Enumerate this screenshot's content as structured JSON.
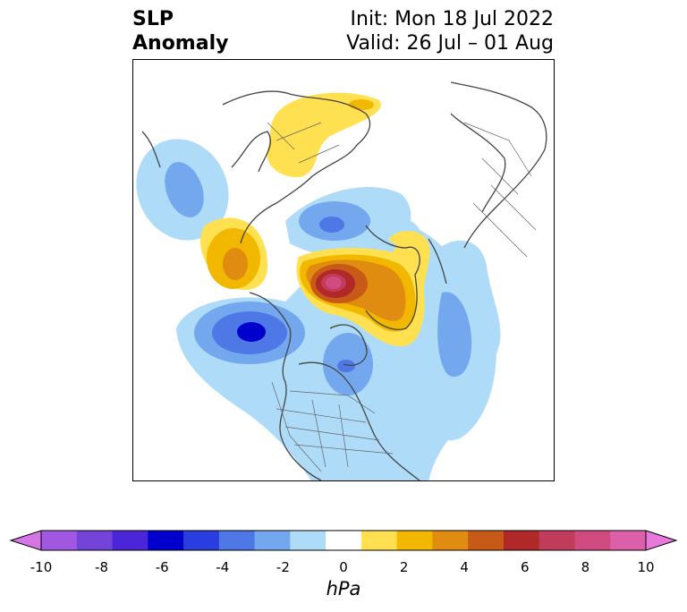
{
  "title": {
    "left_line1": "SLP",
    "left_line2": "Anomaly",
    "right_line1": "Init: Mon 18 Jul 2022",
    "right_line2": "Valid: 26 Jul – 01 Aug"
  },
  "colorbar": {
    "ticks": [
      "-10",
      "-8",
      "-6",
      "-4",
      "-2",
      "0",
      "2",
      "4",
      "6",
      "8",
      "10"
    ],
    "unit": "hPa",
    "colors": [
      "#d575e6",
      "#a058e0",
      "#7444d8",
      "#4b26d8",
      "#0000cc",
      "#2a3ee0",
      "#4e78e6",
      "#74a8ee",
      "#aedcf8",
      "#ffffff",
      "#ffe050",
      "#f2b800",
      "#e08c10",
      "#c85a18",
      "#b02828",
      "#c03c5a",
      "#d04c80",
      "#dc60a8",
      "#e878dc"
    ]
  },
  "map": {
    "palette": {
      "neg1": "#aedcf8",
      "neg2": "#74a8ee",
      "neg3": "#4e78e6",
      "neg4": "#2a3ee0",
      "neg5": "#0000cc",
      "pos1": "#ffe050",
      "pos2": "#f2b800",
      "pos3": "#e08c10",
      "pos4": "#c85a18",
      "pos5": "#b02828",
      "pos6": "#c03c5a",
      "pos7": "#d04c80",
      "coast": "#444444",
      "border": "#666666"
    }
  }
}
